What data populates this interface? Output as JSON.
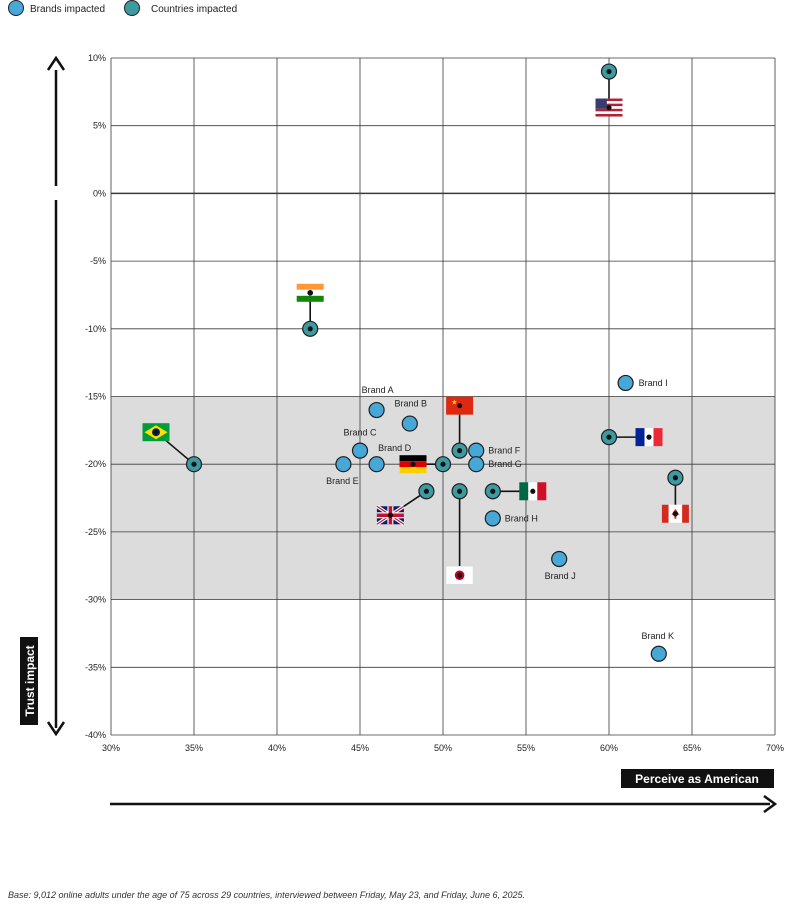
{
  "legend": {
    "brands_label": "Brands impacted",
    "countries_label": "Countries impacted",
    "brand_color": "#47a7d6",
    "country_color": "#3d9aa0"
  },
  "axes": {
    "y_title": "Trust impact",
    "x_title": "Perceive as American"
  },
  "footnote": "Base: 9,012 online adults under the age of 75 across 29 countries, interviewed between Friday, May 23, and Friday, June 6, 2025.",
  "chart_data": {
    "type": "scatter",
    "xlabel": "Perceive as American",
    "ylabel": "Trust impact",
    "xlim": [
      30,
      70
    ],
    "ylim": [
      -40,
      10
    ],
    "x_ticks": [
      30,
      35,
      40,
      45,
      50,
      55,
      60,
      65,
      70
    ],
    "y_ticks": [
      10,
      5,
      0,
      -5,
      -10,
      -15,
      -20,
      -25,
      -30,
      -35,
      -40
    ],
    "x_tick_labels": [
      "30%",
      "35%",
      "40%",
      "45%",
      "50%",
      "55%",
      "60%",
      "65%",
      "70%"
    ],
    "y_tick_labels": [
      "10%",
      "5%",
      "0%",
      "-5%",
      "-10%",
      "-15%",
      "-20%",
      "-25%",
      "-30%",
      "-35%",
      "-40%"
    ],
    "shaded_band": [
      -30,
      -15
    ],
    "grid": true,
    "series": [
      {
        "name": "Brands impacted",
        "points": [
          {
            "label": "Brand A",
            "x": 46,
            "y": -16
          },
          {
            "label": "Brand B",
            "x": 48,
            "y": -17
          },
          {
            "label": "Brand C",
            "x": 45,
            "y": -19
          },
          {
            "label": "Brand D",
            "x": 46,
            "y": -20
          },
          {
            "label": "Brand E",
            "x": 44,
            "y": -20
          },
          {
            "label": "Brand F",
            "x": 52,
            "y": -19
          },
          {
            "label": "Brand G",
            "x": 52,
            "y": -20
          },
          {
            "label": "Brand H",
            "x": 53,
            "y": -24
          },
          {
            "label": "Brand I",
            "x": 61,
            "y": -14
          },
          {
            "label": "Brand J",
            "x": 57,
            "y": -27
          },
          {
            "label": "Brand K",
            "x": 63,
            "y": -34
          }
        ]
      },
      {
        "name": "Countries impacted",
        "points": [
          {
            "country": "United States",
            "flag": "us",
            "x": 60,
            "y": 9
          },
          {
            "country": "India",
            "flag": "in",
            "x": 42,
            "y": -10
          },
          {
            "country": "Brazil",
            "flag": "br",
            "x": 35,
            "y": -20
          },
          {
            "country": "China",
            "flag": "cn",
            "x": 51,
            "y": -19
          },
          {
            "country": "Germany",
            "flag": "de",
            "x": 50,
            "y": -20
          },
          {
            "country": "United Kingdom",
            "flag": "gb",
            "x": 49,
            "y": -22
          },
          {
            "country": "Japan",
            "flag": "jp",
            "x": 51,
            "y": -22
          },
          {
            "country": "Mexico",
            "flag": "mx",
            "x": 53,
            "y": -22
          },
          {
            "country": "France",
            "flag": "fr",
            "x": 60,
            "y": -18
          },
          {
            "country": "Canada",
            "flag": "ca",
            "x": 64,
            "y": -21
          }
        ]
      }
    ]
  }
}
